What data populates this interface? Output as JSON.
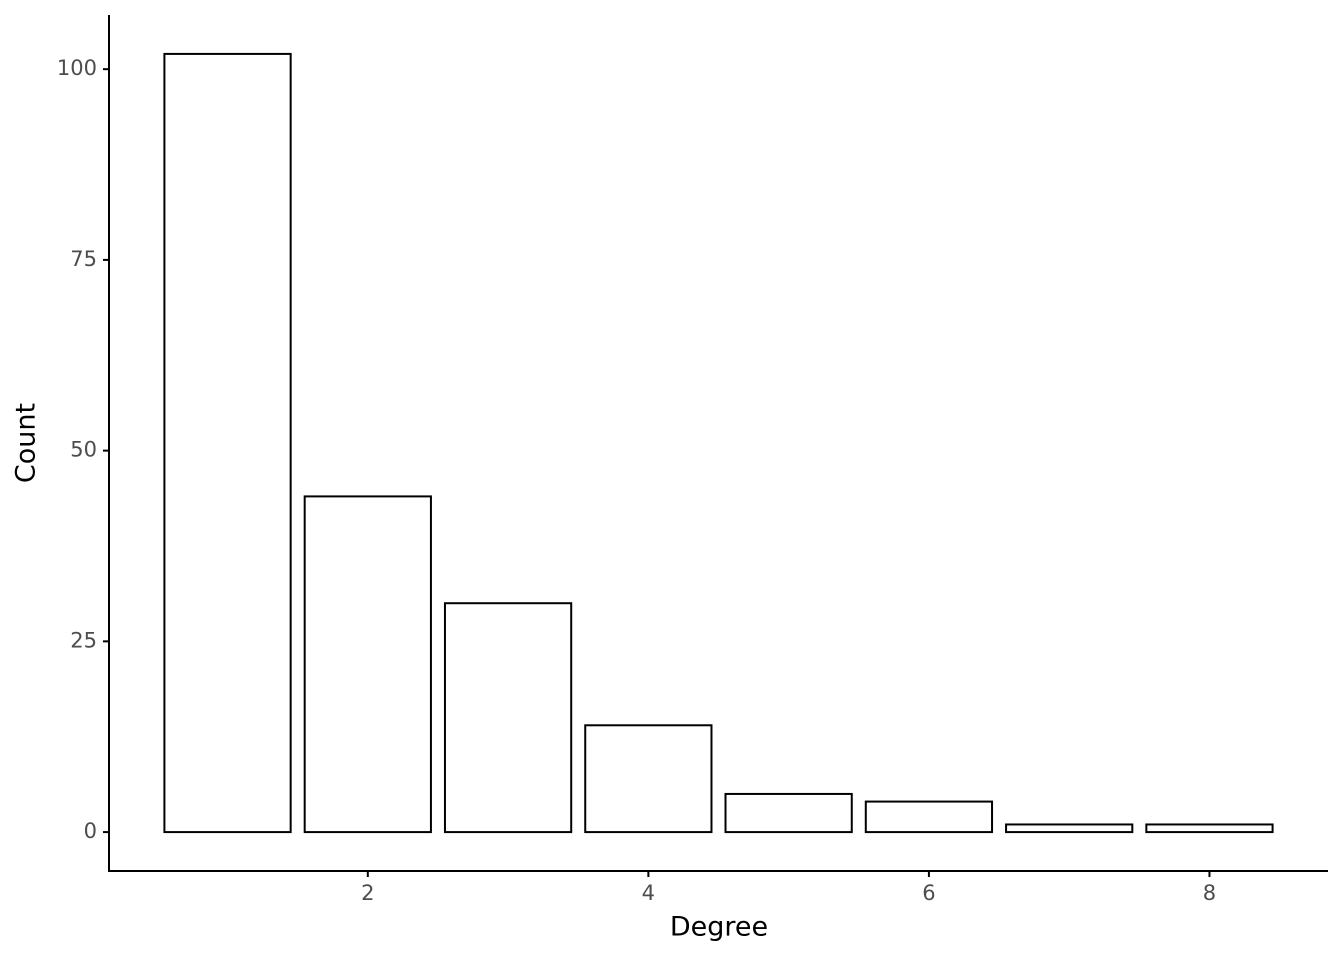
{
  "chart_data": {
    "type": "bar",
    "x": [
      1,
      2,
      3,
      4,
      5,
      6,
      7,
      8
    ],
    "values": [
      102,
      44,
      30,
      14,
      5,
      4,
      1,
      1
    ],
    "xlabel": "Degree",
    "ylabel": "Count",
    "xlim": [
      0.155,
      8.845
    ],
    "xticks": [
      2,
      4,
      6,
      8
    ],
    "ylim": [
      -5.1,
      107.1
    ],
    "yticks": [
      0,
      25,
      50,
      75,
      100
    ],
    "color": "#ffffff",
    "edgecolor": "#000000",
    "grid": false
  }
}
